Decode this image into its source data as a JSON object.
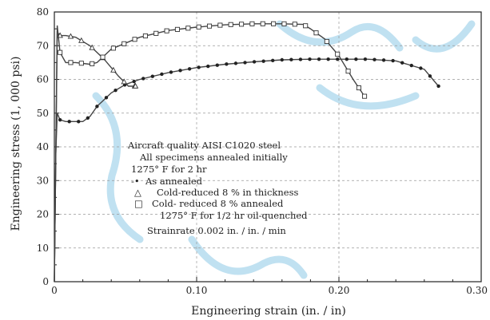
{
  "chart_data": {
    "type": "line",
    "title": "",
    "xlabel": "Engineering strain (in. / in)",
    "ylabel": "Engineering stress (1, 000 psi)",
    "xlim": [
      0,
      0.3
    ],
    "ylim": [
      0,
      80
    ],
    "x_ticks": [
      "0",
      "0.10",
      "0.20",
      "0.30"
    ],
    "y_ticks": [
      "0",
      "10",
      "20",
      "30",
      "40",
      "50",
      "60",
      "70",
      "80"
    ],
    "grid": true,
    "annotation_lines": [
      "Aircraft quality AISI C1020 steel",
      "All specimens annealed initially",
      "1275° F for 2 hr",
      "As annealed",
      "Cold-reduced 8 % in thickness",
      "Cold- reduced 8 % annealed",
      "1275° F for 1/2 hr oil-quenched",
      "Strainrate 0.002 in. / in. / min"
    ],
    "legend_markers": [
      "-•",
      "△",
      "□"
    ],
    "series": [
      {
        "name": "As annealed",
        "marker": "dot",
        "x": [
          0,
          0.001,
          0.002,
          0.004,
          0.008,
          0.012,
          0.016,
          0.02,
          0.025,
          0.03,
          0.04,
          0.05,
          0.06,
          0.08,
          0.1,
          0.12,
          0.14,
          0.16,
          0.18,
          0.2,
          0.22,
          0.24,
          0.26,
          0.27
        ],
        "y": [
          0,
          38,
          50,
          48,
          47.5,
          47.5,
          47.5,
          47.5,
          49,
          52,
          56,
          58.5,
          60,
          62,
          63.5,
          64.5,
          65.2,
          65.8,
          66,
          66,
          66,
          65.5,
          63,
          58
        ]
      },
      {
        "name": "Cold-reduced 8 % in thickness",
        "marker": "triangle",
        "x": [
          0,
          0.002,
          0.004,
          0.008,
          0.015,
          0.025,
          0.035,
          0.045,
          0.052,
          0.057
        ],
        "y": [
          0,
          74,
          73,
          73,
          72.5,
          70,
          66,
          61,
          58,
          58
        ]
      },
      {
        "name": "Cold- reduced 8 % annealed 1275° F for 1/2 hr oil-quenched",
        "marker": "square",
        "x": [
          0,
          0.002,
          0.004,
          0.008,
          0.015,
          0.025,
          0.03,
          0.04,
          0.06,
          0.08,
          0.1,
          0.12,
          0.14,
          0.16,
          0.175,
          0.18,
          0.19,
          0.2,
          0.21,
          0.218
        ],
        "y": [
          0,
          76,
          68,
          65,
          65,
          64.5,
          65,
          69,
          72.5,
          74.5,
          75.5,
          76.2,
          76.5,
          76.5,
          76.3,
          75,
          72,
          67,
          60,
          55
        ]
      }
    ]
  }
}
